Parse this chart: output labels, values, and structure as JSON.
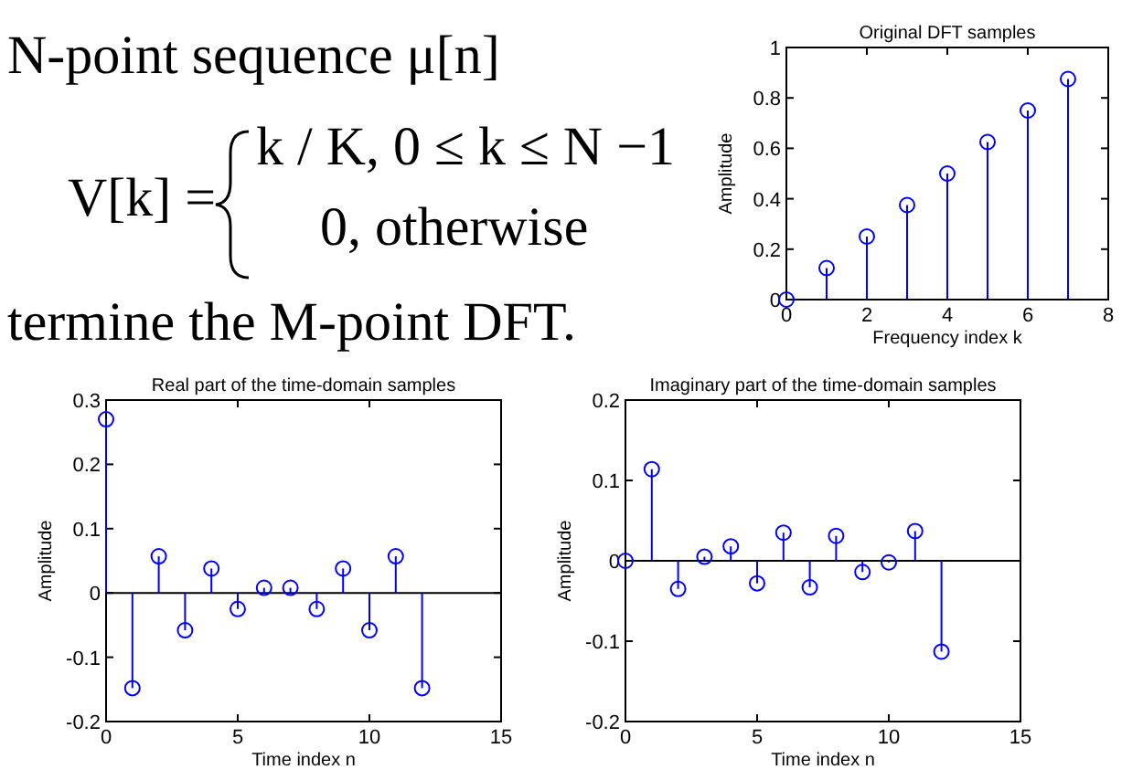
{
  "chart_data": [
    {
      "type": "other",
      "annotations": [
        "N-point sequence μ[n]",
        "V[k] =",
        "k / K,  0 ≤ k ≤ N −1",
        "0,   otherwise",
        "termine the M-point DFT."
      ]
    },
    {
      "type": "lollipop",
      "title": "Original DFT samples",
      "xlabel": "Frequency index k",
      "ylabel": "Amplitude",
      "x": [
        0,
        1,
        2,
        3,
        4,
        5,
        6,
        7
      ],
      "values": [
        0,
        0.125,
        0.25,
        0.375,
        0.5,
        0.625,
        0.75,
        0.875
      ],
      "color": "#0000ff",
      "marker": "circle",
      "xlim": [
        0,
        8
      ],
      "xticks": [
        0,
        2,
        4,
        6,
        8
      ],
      "ylim": [
        0,
        1
      ],
      "yticks": [
        0,
        0.2,
        0.4,
        0.6,
        0.8,
        1
      ]
    },
    {
      "type": "lollipop",
      "title": "Real part of the time-domain samples",
      "xlabel": "Time index n",
      "ylabel": "Amplitude",
      "x": [
        0,
        1,
        2,
        3,
        4,
        5,
        6,
        7,
        8,
        9,
        10,
        11,
        12
      ],
      "values": [
        0.27,
        -0.148,
        0.057,
        -0.058,
        0.038,
        -0.025,
        0.008,
        0.008,
        -0.025,
        0.038,
        -0.058,
        0.057,
        -0.148
      ],
      "color": "#0000ff",
      "marker": "circle",
      "xlim": [
        0,
        15
      ],
      "xticks": [
        0,
        5,
        10,
        15
      ],
      "ylim": [
        -0.2,
        0.3
      ],
      "yticks": [
        -0.2,
        -0.1,
        0,
        0.1,
        0.2,
        0.3
      ]
    },
    {
      "type": "lollipop",
      "title": "Imaginary part of the time-domain samples",
      "xlabel": "Time index n",
      "ylabel": "Amplitude",
      "x": [
        0,
        1,
        2,
        3,
        4,
        5,
        6,
        7,
        8,
        9,
        10,
        11,
        12
      ],
      "values": [
        0,
        0.114,
        -0.035,
        0.005,
        0.018,
        -0.028,
        0.035,
        -0.033,
        0.031,
        -0.014,
        -0.002,
        0.037,
        -0.113
      ],
      "color": "#0000ff",
      "marker": "circle",
      "xlim": [
        0,
        15
      ],
      "xticks": [
        0,
        5,
        10,
        15
      ],
      "ylim": [
        -0.2,
        0.2
      ],
      "yticks": [
        -0.2,
        -0.1,
        0,
        0.1,
        0.2
      ]
    }
  ]
}
